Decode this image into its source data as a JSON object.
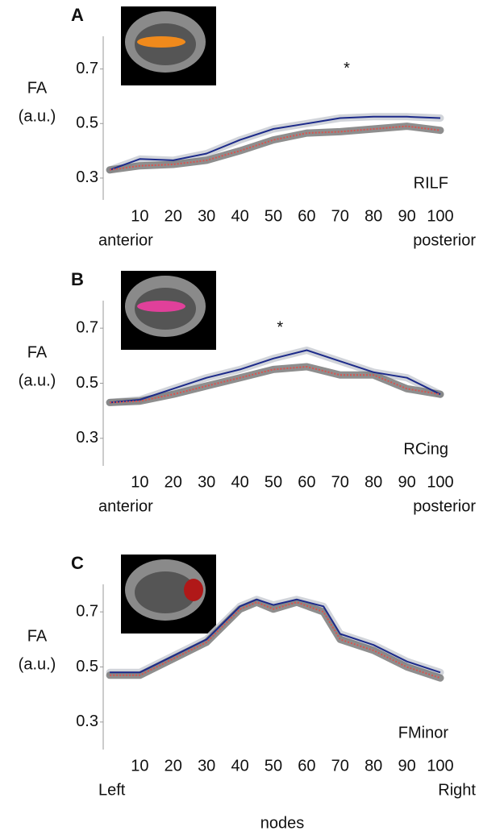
{
  "chart_data": [
    {
      "type": "line",
      "panel": "A",
      "ylabel": [
        "FA",
        "(a.u.)"
      ],
      "label": "RILF",
      "x_start_label": "anterior",
      "x_end_label": "posterior",
      "x": [
        1,
        10,
        20,
        30,
        40,
        50,
        60,
        70,
        80,
        90,
        100
      ],
      "series": [
        {
          "color": "#1c2a8a",
          "values": [
            0.33,
            0.37,
            0.365,
            0.39,
            0.44,
            0.48,
            0.5,
            0.52,
            0.525,
            0.525,
            0.52
          ]
        },
        {
          "color": "#d9534f",
          "values": [
            0.33,
            0.345,
            0.35,
            0.365,
            0.4,
            0.44,
            0.465,
            0.47,
            0.48,
            0.49,
            0.475
          ]
        }
      ],
      "xlim": [
        0,
        100
      ],
      "ylim": [
        0.22,
        0.82
      ],
      "xticks": [
        10,
        20,
        30,
        40,
        50,
        60,
        70,
        80,
        90,
        100
      ],
      "yticks": [
        0.3,
        0.5,
        0.7
      ],
      "annotations": [
        {
          "text": "*",
          "x": 72,
          "y": 0.7
        }
      ]
    },
    {
      "type": "line",
      "panel": "B",
      "ylabel": [
        "FA",
        "(a.u.)"
      ],
      "label": "RCing",
      "x_start_label": "anterior",
      "x_end_label": "posterior",
      "x": [
        1,
        10,
        20,
        30,
        40,
        50,
        60,
        70,
        80,
        90,
        100
      ],
      "series": [
        {
          "color": "#1c2a8a",
          "values": [
            0.43,
            0.44,
            0.48,
            0.52,
            0.55,
            0.59,
            0.62,
            0.58,
            0.54,
            0.52,
            0.46
          ]
        },
        {
          "color": "#d9534f",
          "values": [
            0.43,
            0.435,
            0.46,
            0.49,
            0.52,
            0.55,
            0.56,
            0.53,
            0.53,
            0.48,
            0.46
          ]
        }
      ],
      "xlim": [
        0,
        100
      ],
      "ylim": [
        0.2,
        0.8
      ],
      "xticks": [
        10,
        20,
        30,
        40,
        50,
        60,
        70,
        80,
        90,
        100
      ],
      "yticks": [
        0.3,
        0.5,
        0.7
      ],
      "annotations": [
        {
          "text": "*",
          "x": 52,
          "y": 0.7
        }
      ]
    },
    {
      "type": "line",
      "panel": "C",
      "ylabel": [
        "FA",
        "(a.u.)"
      ],
      "label": "FMinor",
      "x_start_label": "Left",
      "x_end_label": "Right",
      "xlabel": "nodes",
      "x": [
        1,
        10,
        20,
        30,
        40,
        45,
        50,
        57,
        65,
        70,
        80,
        90,
        100
      ],
      "series": [
        {
          "color": "#1c2a8a",
          "values": [
            0.48,
            0.48,
            0.54,
            0.6,
            0.72,
            0.745,
            0.725,
            0.745,
            0.72,
            0.62,
            0.58,
            0.52,
            0.48
          ]
        },
        {
          "color": "#d9534f",
          "values": [
            0.47,
            0.47,
            0.53,
            0.59,
            0.71,
            0.735,
            0.71,
            0.735,
            0.7,
            0.6,
            0.56,
            0.5,
            0.46
          ]
        }
      ],
      "xlim": [
        0,
        100
      ],
      "ylim": [
        0.2,
        0.8
      ],
      "xticks": [
        10,
        20,
        30,
        40,
        50,
        60,
        70,
        80,
        90,
        100
      ],
      "yticks": [
        0.3,
        0.5,
        0.7
      ],
      "annotations": []
    }
  ]
}
